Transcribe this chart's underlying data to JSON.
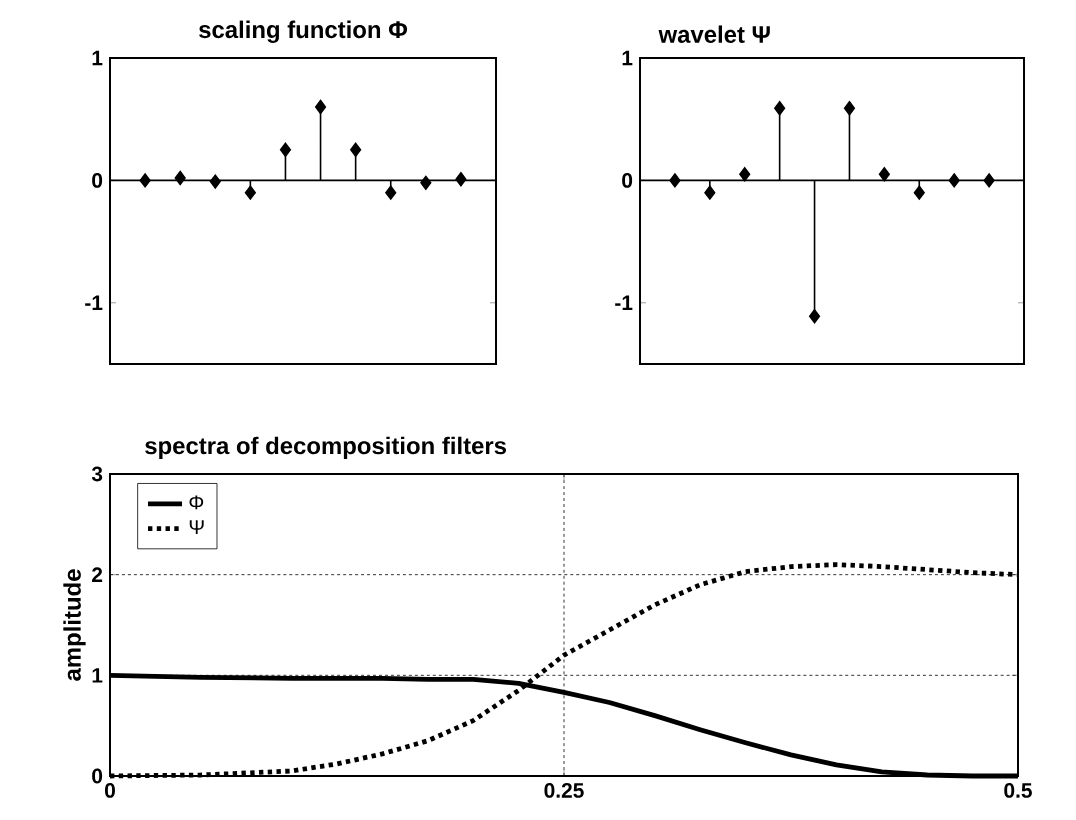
{
  "chart_data": [
    {
      "type": "lollipop",
      "title": "scaling function Φ",
      "categories": [
        null,
        null,
        null,
        null,
        null,
        null,
        null,
        null,
        null,
        null
      ],
      "series": [
        {
          "color": "#000000",
          "values": [
            0,
            0.02,
            -0.01,
            -0.1,
            0.25,
            0.6,
            0.25,
            -0.1,
            -0.02,
            0.01
          ]
        }
      ],
      "ylim": [
        -1.5,
        1
      ],
      "yticks": [
        -1,
        0,
        1
      ],
      "tick_labels": "y",
      "marker": "diamond",
      "ref_lines": [
        {
          "axis": "y",
          "value": 0
        }
      ]
    },
    {
      "type": "lollipop",
      "title": "wavelet Ψ",
      "categories": [
        null,
        null,
        null,
        null,
        null,
        null,
        null,
        null,
        null,
        null
      ],
      "series": [
        {
          "color": "#000000",
          "values": [
            0,
            -0.1,
            0.05,
            0.59,
            -1.11,
            0.59,
            0.05,
            -0.1,
            0,
            0
          ]
        }
      ],
      "ylim": [
        -1.5,
        1
      ],
      "yticks": [
        -1,
        0,
        1
      ],
      "tick_labels": "y",
      "marker": "diamond",
      "ref_lines": [
        {
          "axis": "y",
          "value": 0
        }
      ]
    },
    {
      "type": "line",
      "title": "spectra of decomposition filters",
      "ylabel": "amplitude",
      "x": [
        0,
        0.05,
        0.1,
        0.125,
        0.15,
        0.175,
        0.2,
        0.225,
        0.25,
        0.275,
        0.3,
        0.325,
        0.35,
        0.375,
        0.4,
        0.425,
        0.45,
        0.475,
        0.5
      ],
      "series": [
        {
          "name": "Φ",
          "color": "#000000",
          "line_style": "solid",
          "values": [
            1.0,
            0.98,
            0.97,
            0.97,
            0.97,
            0.96,
            0.96,
            0.92,
            0.83,
            0.73,
            0.6,
            0.46,
            0.33,
            0.21,
            0.11,
            0.04,
            0.01,
            0,
            0
          ]
        },
        {
          "name": "Ψ",
          "color": "#000000",
          "line_style": "dotted",
          "values": [
            0,
            0.01,
            0.05,
            0.12,
            0.22,
            0.35,
            0.55,
            0.85,
            1.2,
            1.45,
            1.7,
            1.9,
            2.03,
            2.08,
            2.1,
            2.08,
            2.05,
            2.02,
            2.0
          ]
        }
      ],
      "xlim": [
        0,
        0.5
      ],
      "xticks": [
        0,
        0.25,
        0.5
      ],
      "ylim": [
        0,
        3
      ],
      "yticks": [
        0,
        1,
        2,
        3
      ],
      "grid": true,
      "legend": "top left",
      "marker": "none"
    }
  ]
}
